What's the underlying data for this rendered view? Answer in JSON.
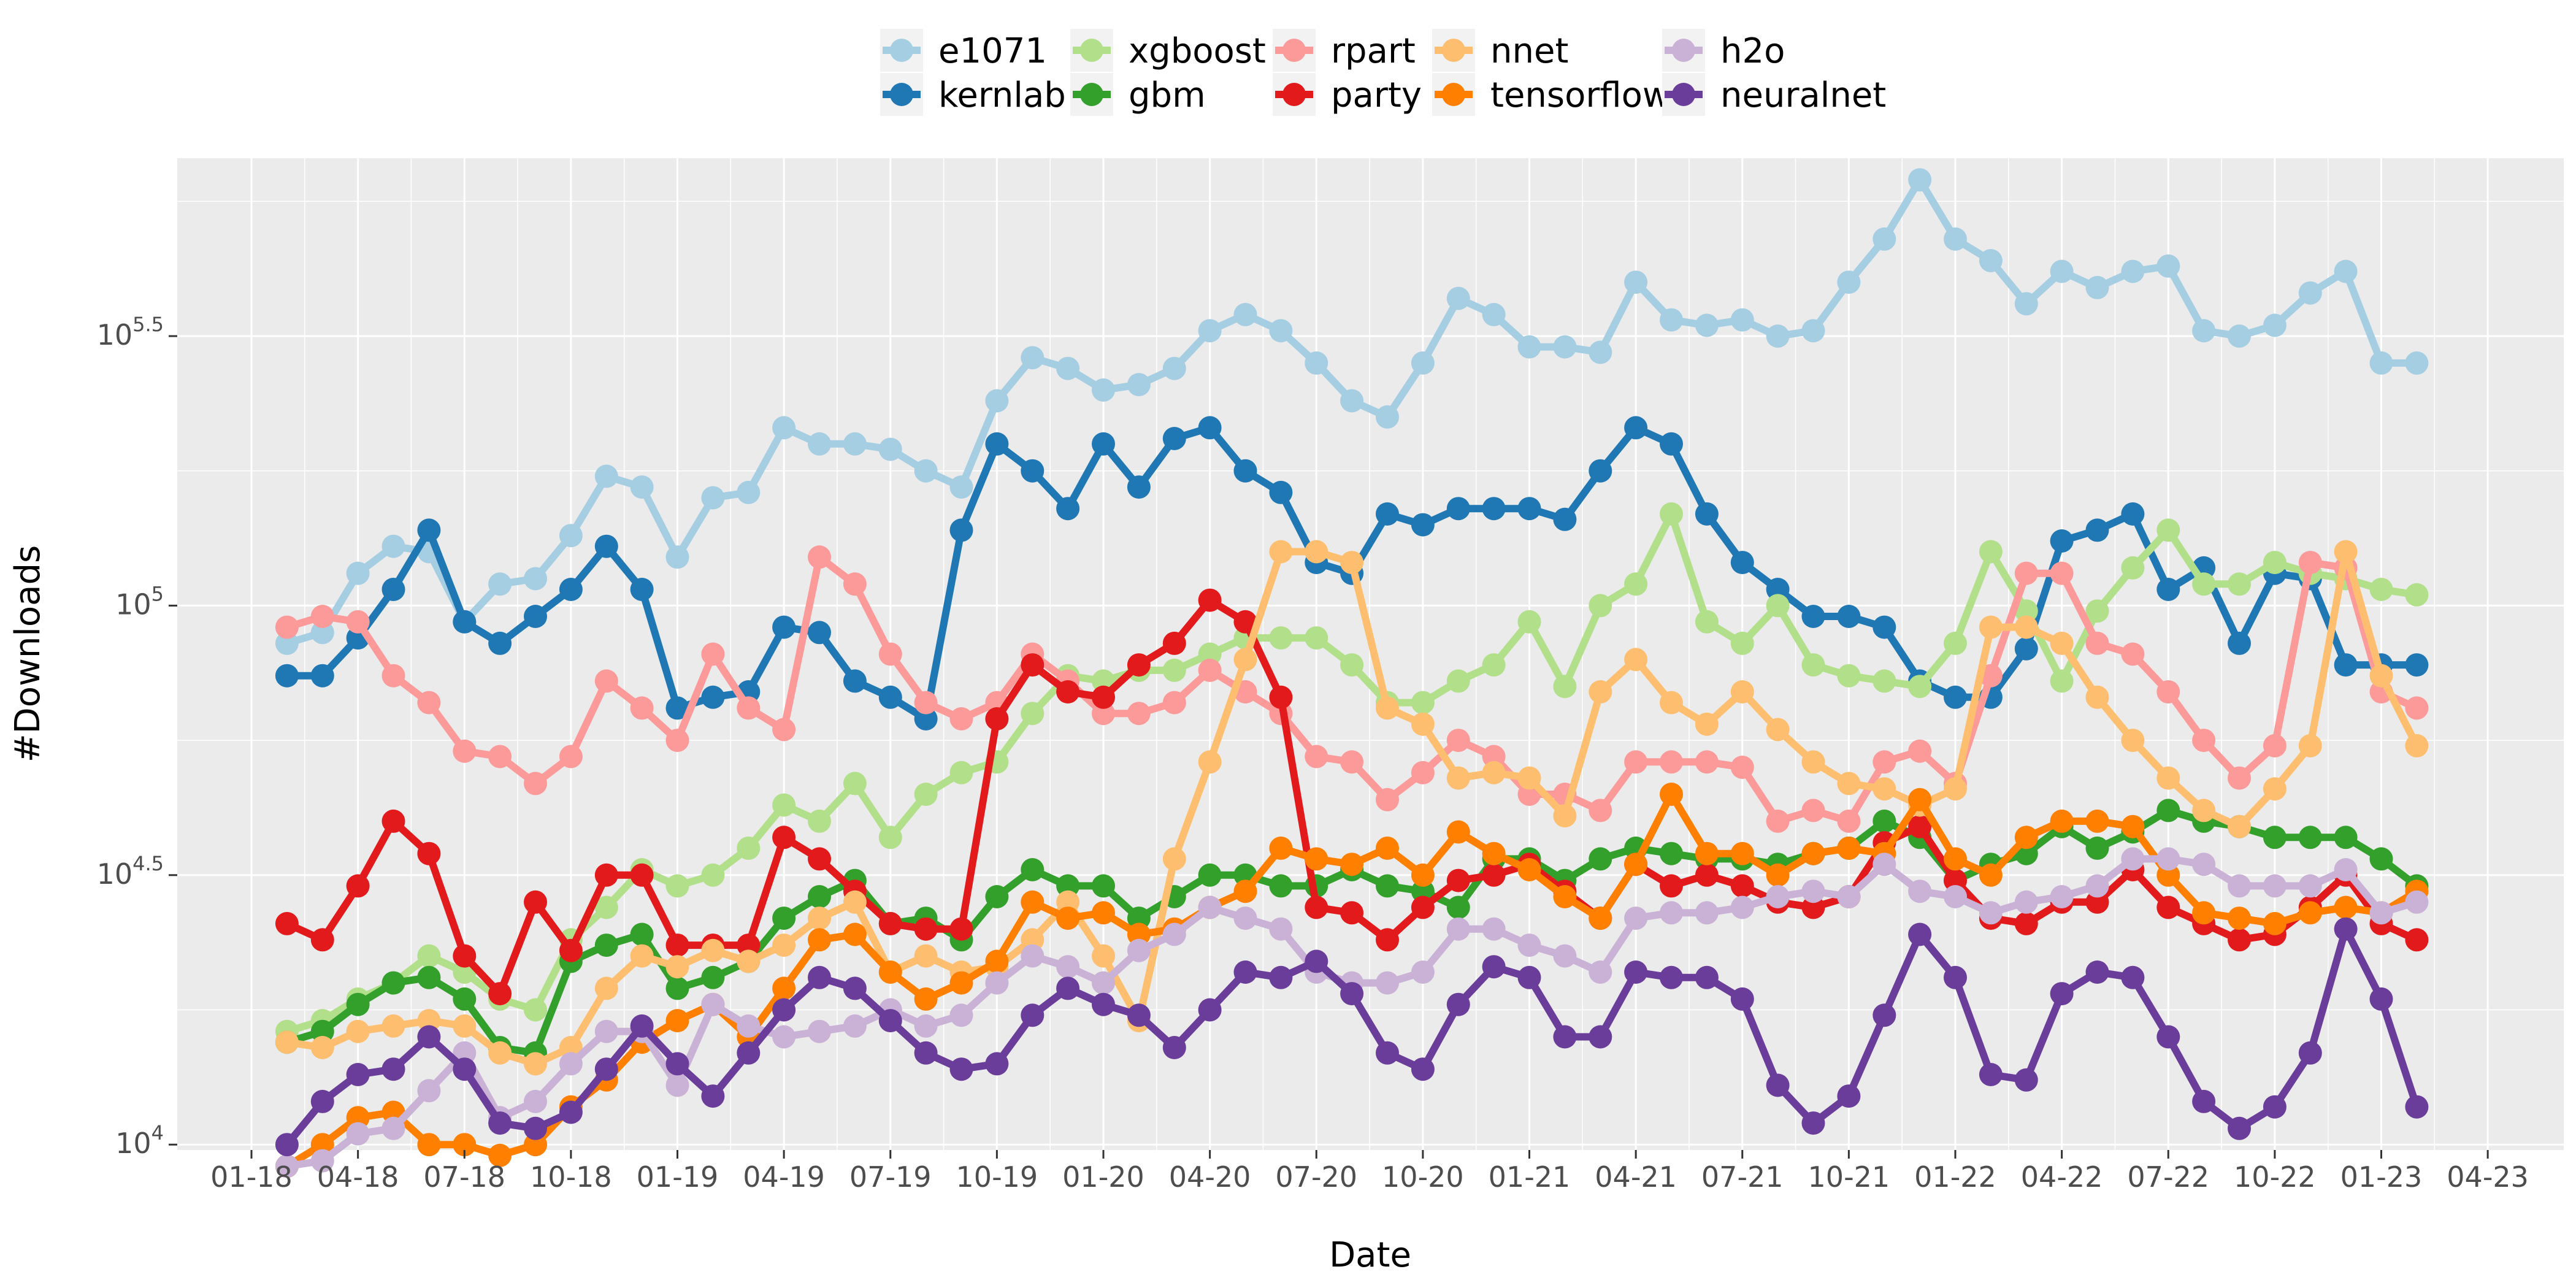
{
  "chart_data": {
    "type": "line",
    "xlabel": "Date",
    "ylabel": "#Downloads",
    "y_scale": "log10",
    "ylim": [
      "10^3.99",
      "10^5.83"
    ],
    "y_ticks": [
      {
        "value": 4,
        "base": "10",
        "exp": "4"
      },
      {
        "value": 4.5,
        "base": "10",
        "exp": "4.5"
      },
      {
        "value": 5,
        "base": "10",
        "exp": "5"
      },
      {
        "value": 5.5,
        "base": "10",
        "exp": "5.5"
      }
    ],
    "x_ticks": [
      "01-18",
      "04-18",
      "07-18",
      "10-18",
      "01-19",
      "04-19",
      "07-19",
      "10-19",
      "01-20",
      "04-20",
      "07-20",
      "10-20",
      "01-21",
      "04-21",
      "07-21",
      "10-21",
      "01-22",
      "04-22",
      "07-22",
      "10-22",
      "01-23",
      "04-23"
    ],
    "x_start": "2018-01",
    "x_end": "2023-04",
    "dates": [
      "2018-02",
      "2018-03",
      "2018-04",
      "2018-05",
      "2018-06",
      "2018-07",
      "2018-08",
      "2018-09",
      "2018-10",
      "2018-11",
      "2018-12",
      "2019-01",
      "2019-02",
      "2019-03",
      "2019-04",
      "2019-05",
      "2019-06",
      "2019-07",
      "2019-08",
      "2019-09",
      "2019-10",
      "2019-11",
      "2019-12",
      "2020-01",
      "2020-02",
      "2020-03",
      "2020-04",
      "2020-05",
      "2020-06",
      "2020-07",
      "2020-08",
      "2020-09",
      "2020-10",
      "2020-11",
      "2020-12",
      "2021-01",
      "2021-02",
      "2021-03",
      "2021-04",
      "2021-05",
      "2021-06",
      "2021-07",
      "2021-08",
      "2021-09",
      "2021-10",
      "2021-11",
      "2021-12",
      "2022-01",
      "2022-02",
      "2022-03",
      "2022-04",
      "2022-05",
      "2022-06",
      "2022-07",
      "2022-08",
      "2022-09",
      "2022-10",
      "2022-11",
      "2022-12",
      "2023-01",
      "2023-02"
    ],
    "legend_position": "top",
    "series": [
      {
        "name": "e1071",
        "color": "#A6CEE3",
        "values": [
          4.93,
          4.95,
          5.06,
          5.11,
          5.1,
          4.97,
          5.04,
          5.05,
          5.13,
          5.24,
          5.22,
          5.09,
          5.2,
          5.21,
          5.33,
          5.3,
          5.3,
          5.29,
          5.25,
          5.22,
          5.38,
          5.46,
          5.44,
          5.4,
          5.41,
          5.44,
          5.51,
          5.54,
          5.51,
          5.45,
          5.38,
          5.35,
          5.45,
          5.57,
          5.54,
          5.48,
          5.48,
          5.47,
          5.6,
          5.53,
          5.52,
          5.53,
          5.5,
          5.51,
          5.6,
          5.68,
          5.79,
          5.68,
          5.64,
          5.56,
          5.62,
          5.59,
          5.62,
          5.63,
          5.51,
          5.5,
          5.52,
          5.58,
          5.62,
          5.45,
          5.45
        ]
      },
      {
        "name": "kernlab",
        "color": "#1F78B4",
        "values": [
          4.87,
          4.87,
          4.94,
          5.03,
          5.14,
          4.97,
          4.93,
          4.98,
          5.03,
          5.11,
          5.03,
          4.81,
          4.83,
          4.84,
          4.96,
          4.95,
          4.86,
          4.83,
          4.79,
          5.14,
          5.3,
          5.25,
          5.18,
          5.3,
          5.22,
          5.31,
          5.33,
          5.25,
          5.21,
          5.08,
          5.06,
          5.17,
          5.15,
          5.18,
          5.18,
          5.18,
          5.16,
          5.25,
          5.33,
          5.3,
          5.17,
          5.08,
          5.03,
          4.98,
          4.98,
          4.96,
          4.86,
          4.83,
          4.83,
          4.92,
          5.12,
          5.14,
          5.17,
          5.03,
          5.07,
          4.93,
          5.06,
          5.05,
          4.89,
          4.89,
          4.89
        ]
      },
      {
        "name": "xgboost",
        "color": "#B2DF8A",
        "values": [
          4.21,
          4.23,
          4.27,
          4.3,
          4.35,
          4.32,
          4.27,
          4.25,
          4.38,
          4.44,
          4.51,
          4.48,
          4.5,
          4.55,
          4.63,
          4.6,
          4.67,
          4.57,
          4.65,
          4.69,
          4.71,
          4.8,
          4.87,
          4.86,
          4.88,
          4.88,
          4.91,
          4.94,
          4.94,
          4.94,
          4.89,
          4.82,
          4.82,
          4.86,
          4.89,
          4.97,
          4.85,
          5.0,
          5.04,
          5.17,
          4.97,
          4.93,
          5.0,
          4.89,
          4.87,
          4.86,
          4.85,
          4.93,
          5.1,
          4.99,
          4.86,
          4.99,
          5.07,
          5.14,
          5.04,
          5.04,
          5.08,
          5.06,
          5.05,
          5.03,
          5.02
        ]
      },
      {
        "name": "gbm",
        "color": "#33A02C",
        "values": [
          4.19,
          4.21,
          4.26,
          4.3,
          4.31,
          4.27,
          4.18,
          4.17,
          4.34,
          4.37,
          4.39,
          4.29,
          4.31,
          4.34,
          4.42,
          4.46,
          4.49,
          4.41,
          4.42,
          4.38,
          4.46,
          4.51,
          4.48,
          4.48,
          4.42,
          4.46,
          4.5,
          4.5,
          4.48,
          4.48,
          4.51,
          4.48,
          4.47,
          4.44,
          4.53,
          4.53,
          4.49,
          4.53,
          4.55,
          4.54,
          4.53,
          4.53,
          4.52,
          4.54,
          4.55,
          4.6,
          4.57,
          4.49,
          4.52,
          4.54,
          4.59,
          4.55,
          4.58,
          4.62,
          4.6,
          4.59,
          4.57,
          4.57,
          4.57,
          4.53,
          4.48
        ]
      },
      {
        "name": "rpart",
        "color": "#FB9A99",
        "values": [
          4.96,
          4.98,
          4.97,
          4.87,
          4.82,
          4.73,
          4.72,
          4.67,
          4.72,
          4.86,
          4.81,
          4.75,
          4.91,
          4.81,
          4.77,
          5.09,
          5.04,
          4.91,
          4.82,
          4.79,
          4.82,
          4.91,
          4.86,
          4.8,
          4.8,
          4.82,
          4.88,
          4.84,
          4.8,
          4.72,
          4.71,
          4.64,
          4.69,
          4.75,
          4.72,
          4.65,
          4.65,
          4.62,
          4.71,
          4.71,
          4.71,
          4.7,
          4.6,
          4.62,
          4.6,
          4.71,
          4.73,
          4.67,
          4.87,
          5.06,
          5.06,
          4.93,
          4.91,
          4.84,
          4.75,
          4.68,
          4.74,
          5.08,
          5.07,
          4.84,
          4.81
        ]
      },
      {
        "name": "party",
        "color": "#E31A1C",
        "values": [
          4.41,
          4.38,
          4.48,
          4.6,
          4.54,
          4.35,
          4.28,
          4.45,
          4.36,
          4.5,
          4.5,
          4.37,
          4.37,
          4.37,
          4.57,
          4.53,
          4.47,
          4.41,
          4.4,
          4.4,
          4.79,
          4.89,
          4.84,
          4.83,
          4.89,
          4.93,
          5.01,
          4.97,
          4.83,
          4.44,
          4.43,
          4.38,
          4.44,
          4.49,
          4.5,
          4.52,
          4.47,
          4.42,
          4.52,
          4.48,
          4.5,
          4.48,
          4.45,
          4.44,
          4.46,
          4.56,
          4.59,
          4.49,
          4.42,
          4.41,
          4.45,
          4.45,
          4.51,
          4.44,
          4.41,
          4.38,
          4.39,
          4.44,
          4.5,
          4.41,
          4.38
        ]
      },
      {
        "name": "nnet",
        "color": "#FDBF6F",
        "values": [
          4.19,
          4.18,
          4.21,
          4.22,
          4.23,
          4.22,
          4.17,
          4.15,
          4.18,
          4.29,
          4.35,
          4.33,
          4.36,
          4.34,
          4.37,
          4.42,
          4.45,
          4.32,
          4.35,
          4.32,
          4.33,
          4.38,
          4.45,
          4.35,
          4.23,
          4.53,
          4.71,
          4.9,
          5.1,
          5.1,
          5.08,
          4.81,
          4.78,
          4.68,
          4.69,
          4.68,
          4.61,
          4.84,
          4.9,
          4.82,
          4.78,
          4.84,
          4.77,
          4.71,
          4.67,
          4.66,
          4.63,
          4.66,
          4.96,
          4.96,
          4.93,
          4.83,
          4.75,
          4.68,
          4.62,
          4.59,
          4.66,
          4.74,
          5.1,
          4.87,
          4.74
        ]
      },
      {
        "name": "tensorflow",
        "color": "#FF7F00",
        "values": [
          3.96,
          4.0,
          4.05,
          4.06,
          4.0,
          4.0,
          3.98,
          4.0,
          4.07,
          4.12,
          4.19,
          4.23,
          4.26,
          4.2,
          4.29,
          4.38,
          4.39,
          4.32,
          4.27,
          4.3,
          4.34,
          4.45,
          4.42,
          4.43,
          4.39,
          4.4,
          4.44,
          4.47,
          4.55,
          4.53,
          4.52,
          4.55,
          4.5,
          4.58,
          4.54,
          4.51,
          4.46,
          4.42,
          4.52,
          4.65,
          4.54,
          4.54,
          4.5,
          4.54,
          4.55,
          4.54,
          4.64,
          4.53,
          4.5,
          4.57,
          4.6,
          4.6,
          4.59,
          4.5,
          4.43,
          4.42,
          4.41,
          4.43,
          4.44,
          4.43,
          4.47
        ]
      },
      {
        "name": "h2o",
        "color": "#CAB2D6",
        "values": [
          3.96,
          3.97,
          4.02,
          4.03,
          4.1,
          4.17,
          4.05,
          4.08,
          4.15,
          4.21,
          4.21,
          4.11,
          4.26,
          4.22,
          4.2,
          4.21,
          4.22,
          4.25,
          4.22,
          4.24,
          4.3,
          4.35,
          4.33,
          4.3,
          4.36,
          4.39,
          4.44,
          4.42,
          4.4,
          4.32,
          4.3,
          4.3,
          4.32,
          4.4,
          4.4,
          4.37,
          4.35,
          4.32,
          4.42,
          4.43,
          4.43,
          4.44,
          4.46,
          4.47,
          4.46,
          4.52,
          4.47,
          4.46,
          4.43,
          4.45,
          4.46,
          4.48,
          4.53,
          4.53,
          4.52,
          4.48,
          4.48,
          4.48,
          4.51,
          4.43,
          4.45
        ]
      },
      {
        "name": "neuralnet",
        "color": "#6A3D9A",
        "values": [
          4.0,
          4.08,
          4.13,
          4.14,
          4.2,
          4.14,
          4.04,
          4.03,
          4.06,
          4.14,
          4.22,
          4.15,
          4.09,
          4.17,
          4.25,
          4.31,
          4.29,
          4.23,
          4.17,
          4.14,
          4.15,
          4.24,
          4.29,
          4.26,
          4.24,
          4.18,
          4.25,
          4.32,
          4.31,
          4.34,
          4.28,
          4.17,
          4.14,
          4.26,
          4.33,
          4.31,
          4.2,
          4.2,
          4.32,
          4.31,
          4.31,
          4.27,
          4.11,
          4.04,
          4.09,
          4.24,
          4.39,
          4.31,
          4.13,
          4.12,
          4.28,
          4.32,
          4.31,
          4.2,
          4.08,
          4.03,
          4.07,
          4.17,
          4.4,
          4.27,
          4.07
        ]
      }
    ]
  }
}
